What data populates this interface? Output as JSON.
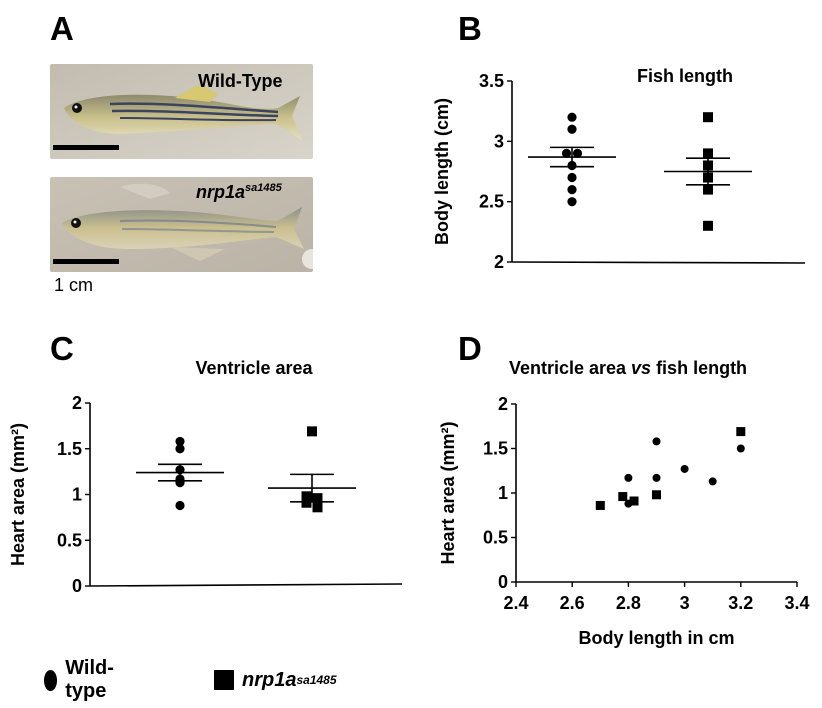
{
  "panels": {
    "a": "A",
    "b": "B",
    "c": "C",
    "d": "D"
  },
  "photos": {
    "wild_type_label": "Wild-Type",
    "mutant_label_base": "nrp1a",
    "mutant_label_sup": "sa1485",
    "scale_text": "1 cm"
  },
  "legend": {
    "wild_type": "Wild-type",
    "mutant_base": "nrp1a",
    "mutant_sup": "sa1485"
  },
  "chart_data": [
    {
      "id": "B",
      "type": "scatter",
      "title": "Fish length",
      "ylabel": "Body length (cm)",
      "ylim": [
        2,
        3.5
      ],
      "yticks": [
        2,
        2.5,
        3,
        3.5
      ],
      "ytick_labels": [
        "2",
        "2.5",
        "3",
        "3.5"
      ],
      "groups": [
        {
          "marker": "circle",
          "values": [
            3.2,
            3.1,
            2.9,
            2.9,
            2.8,
            2.7,
            2.6,
            2.5
          ],
          "mean": 2.87,
          "sem": 0.08
        },
        {
          "marker": "square",
          "values": [
            3.2,
            2.9,
            2.8,
            2.7,
            2.6,
            2.3
          ],
          "mean": 2.75,
          "sem": 0.11
        }
      ]
    },
    {
      "id": "C",
      "type": "scatter",
      "title": "Ventricle area",
      "ylabel": "Heart area (mm²)",
      "ylim": [
        0,
        2
      ],
      "yticks": [
        0,
        0.5,
        1,
        1.5,
        2
      ],
      "ytick_labels": [
        "0",
        "0.5",
        "1",
        "1.5",
        "2"
      ],
      "groups": [
        {
          "marker": "circle",
          "values": [
            1.58,
            1.5,
            1.27,
            1.17,
            1.13,
            0.88
          ],
          "mean": 1.24,
          "sem": 0.09
        },
        {
          "marker": "square",
          "values": [
            1.69,
            0.98,
            0.96,
            0.91,
            0.86
          ],
          "mean": 1.07,
          "sem": 0.15
        }
      ]
    },
    {
      "id": "D",
      "type": "scatter",
      "title_parts": [
        "Ventricle area ",
        "vs",
        " fish length"
      ],
      "xlabel": "Body length in cm",
      "ylabel": "Heart area (mm²)",
      "xlim": [
        2.4,
        3.4
      ],
      "ylim": [
        0,
        2
      ],
      "xticks": [
        2.4,
        2.6,
        2.8,
        3,
        3.2,
        3.4
      ],
      "xtick_labels": [
        "2.4",
        "2.6",
        "2.8",
        "3",
        "3.2",
        "3.4"
      ],
      "yticks": [
        0,
        0.5,
        1,
        1.5,
        2
      ],
      "ytick_labels": [
        "0",
        "0.5",
        "1",
        "1.5",
        "2"
      ],
      "series": [
        {
          "marker": "circle",
          "x": [
            2.8,
            2.8,
            2.9,
            2.9,
            3.0,
            3.1,
            3.2
          ],
          "y": [
            0.88,
            1.17,
            1.58,
            1.17,
            1.27,
            1.13,
            1.5
          ]
        },
        {
          "marker": "square",
          "x": [
            2.7,
            2.78,
            2.82,
            2.9,
            3.2
          ],
          "y": [
            0.86,
            0.96,
            0.91,
            0.98,
            1.69
          ]
        }
      ]
    }
  ]
}
